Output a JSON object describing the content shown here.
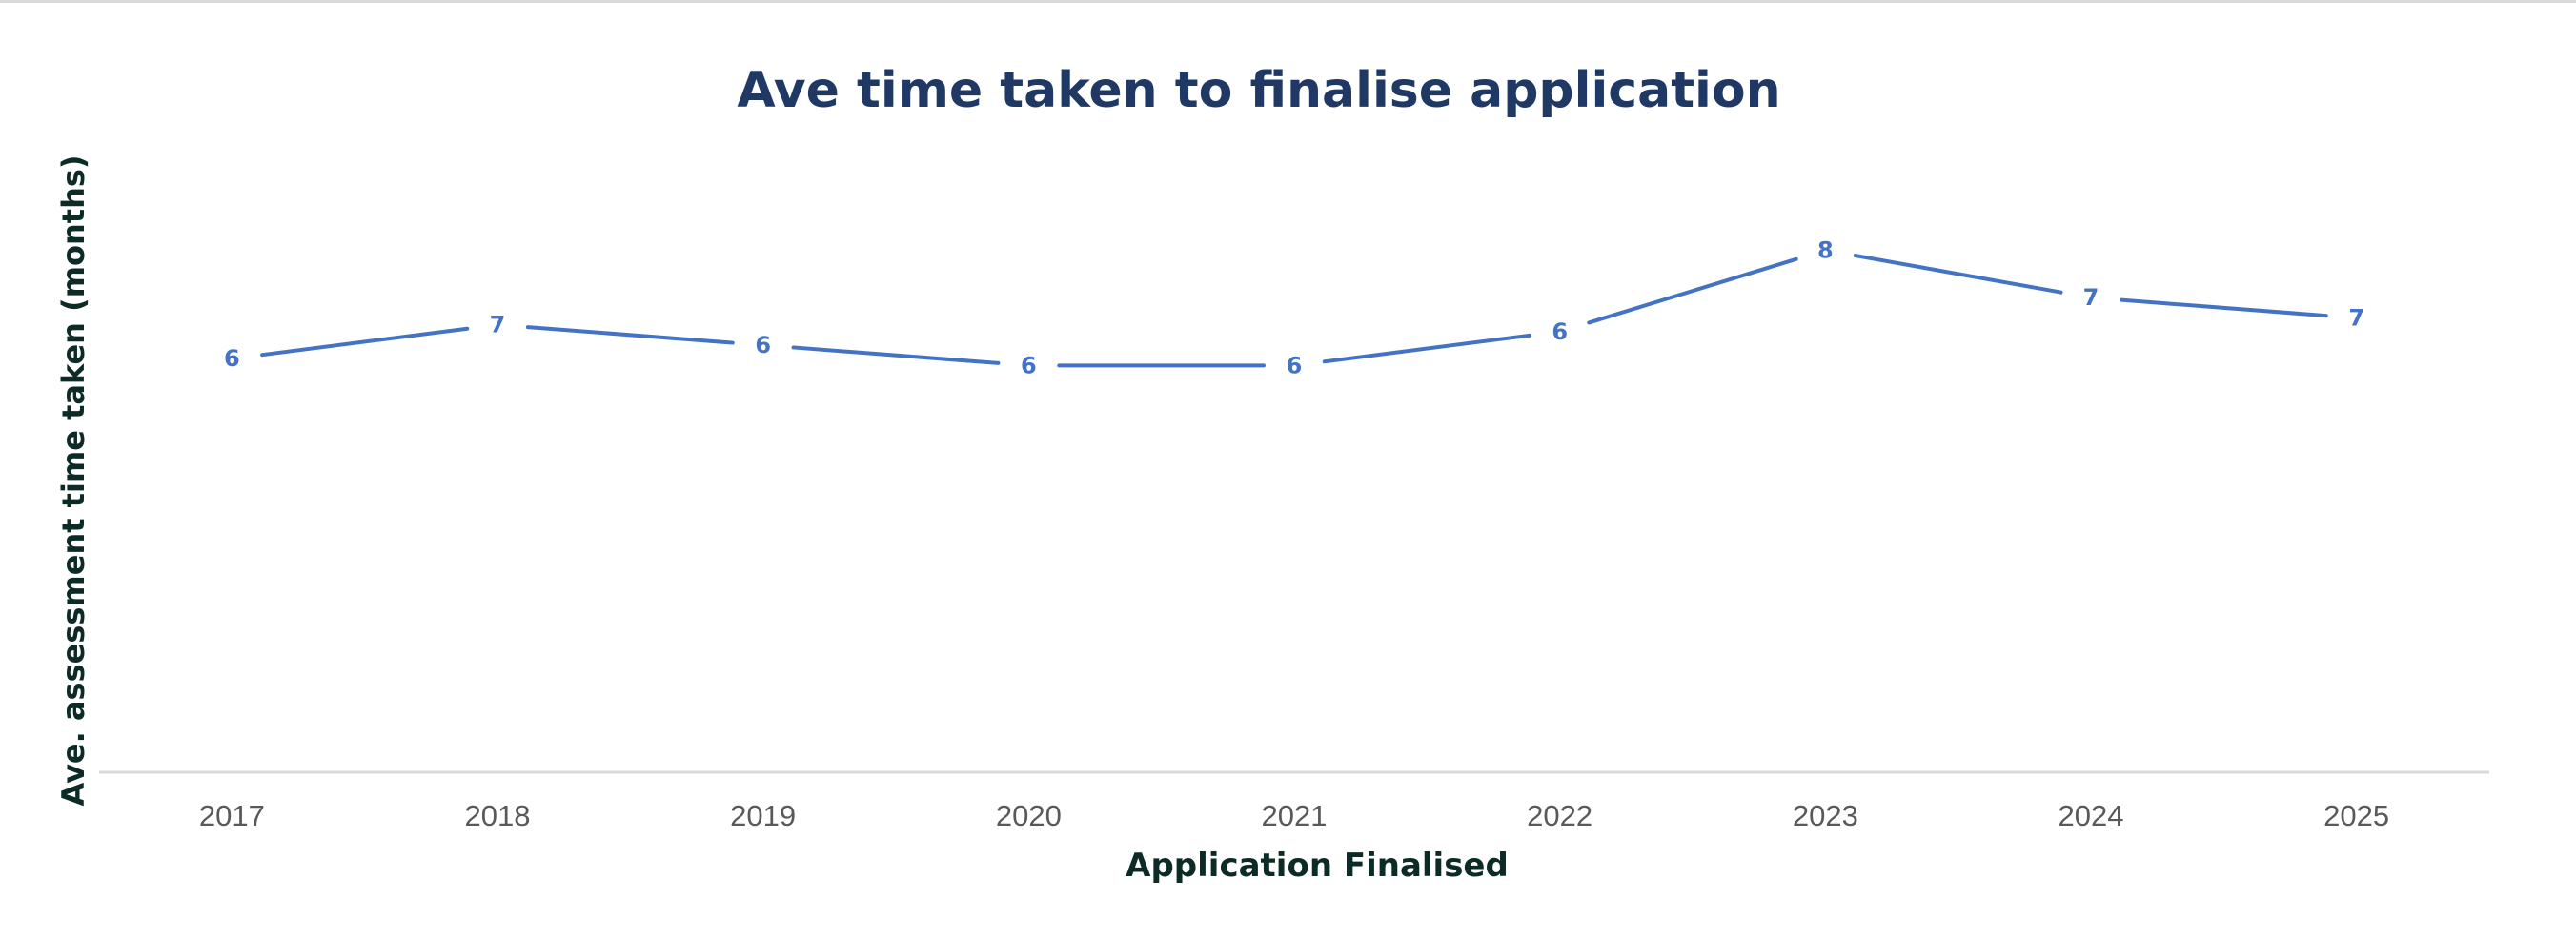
{
  "chart_data": {
    "type": "line",
    "title": "Ave time taken to finalise application",
    "xlabel": "Application Finalised",
    "ylabel": "Ave. assessment time taken (months)",
    "categories": [
      "2017",
      "2018",
      "2019",
      "2020",
      "2021",
      "2022",
      "2023",
      "2024",
      "2025"
    ],
    "values": [
      6.1,
      6.6,
      6.3,
      6.0,
      6.0,
      6.5,
      7.7,
      7.0,
      6.7
    ],
    "data_labels": [
      "6",
      "7",
      "6",
      "6",
      "6",
      "6",
      "8",
      "7",
      "7"
    ],
    "ylim": [
      0,
      9
    ],
    "grid": false,
    "legend": "none",
    "colors": {
      "line": "#4472c4",
      "title": "#1f3864",
      "axis_title": "#0d2b26",
      "tick": "#595959",
      "axis_line": "#d9d9d9"
    }
  }
}
